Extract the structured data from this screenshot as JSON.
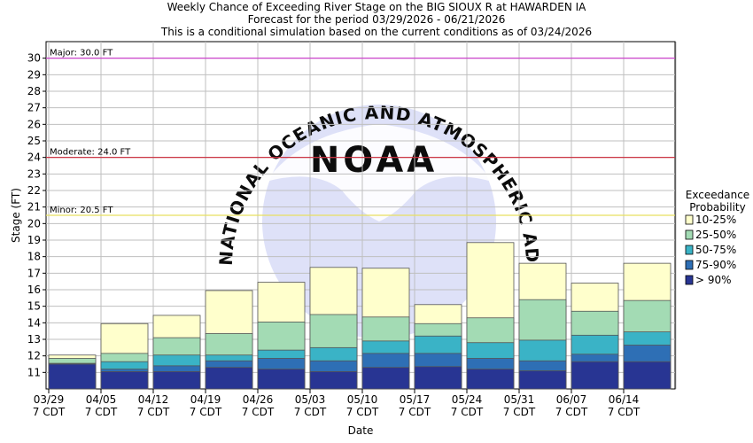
{
  "chart_data": {
    "type": "bar",
    "title": [
      "Weekly Chance of Exceeding River Stage on the BIG SIOUX R at HAWARDEN IA",
      "Forecast for the period 03/29/2026 - 06/21/2026",
      "This is a conditional simulation based on the current conditions as of 03/24/2026"
    ],
    "xlabel": "Date",
    "ylabel": "Stage (FT)",
    "ylim": [
      10,
      31
    ],
    "yticks": [
      11,
      12,
      13,
      14,
      15,
      16,
      17,
      18,
      19,
      20,
      21,
      22,
      23,
      24,
      25,
      26,
      27,
      28,
      29,
      30
    ],
    "grid": true,
    "tick_suffix": "7 CDT",
    "categories": [
      "03/29",
      "04/05",
      "04/12",
      "04/19",
      "04/26",
      "05/03",
      "05/10",
      "05/17",
      "05/24",
      "05/31",
      "06/07",
      "06/14"
    ],
    "series": [
      {
        "name": "> 90%",
        "color": "#283593",
        "values": [
          11.5,
          11.05,
          11.05,
          11.3,
          11.2,
          11.05,
          11.3,
          11.35,
          11.2,
          11.1,
          11.65,
          11.65
        ]
      },
      {
        "name": "75-90%",
        "color": "#2e6fb5",
        "values": [
          11.5,
          11.2,
          11.4,
          11.7,
          11.85,
          11.7,
          12.15,
          12.15,
          11.85,
          11.7,
          12.1,
          12.65
        ]
      },
      {
        "name": "50-75%",
        "color": "#3ab3c6",
        "values": [
          11.55,
          11.65,
          12.05,
          12.05,
          12.35,
          12.5,
          12.9,
          13.2,
          12.8,
          12.95,
          13.25,
          13.45
        ]
      },
      {
        "name": "25-50%",
        "color": "#a3dbb4",
        "values": [
          11.85,
          12.15,
          13.1,
          13.35,
          14.05,
          14.5,
          14.35,
          13.95,
          14.3,
          15.4,
          14.7,
          15.35
        ]
      },
      {
        "name": "10-25%",
        "color": "#ffffcc",
        "values": [
          12.05,
          13.95,
          14.45,
          15.95,
          16.45,
          17.35,
          17.3,
          15.1,
          18.85,
          17.6,
          16.4,
          17.6
        ]
      }
    ],
    "thresholds": [
      {
        "label": "Major: 30.0 FT",
        "value": 30.0,
        "color": "#cc33cc"
      },
      {
        "label": "Moderate: 24.0 FT",
        "value": 24.0,
        "color": "#cc2233"
      },
      {
        "label": "Minor: 20.5 FT",
        "value": 20.5,
        "color": "#e8e060"
      }
    ],
    "legend": {
      "title_line1": "Exceedance",
      "title_line2": "Probability",
      "placement": "right",
      "order": [
        "10-25%",
        "25-50%",
        "50-75%",
        "75-90%",
        "> 90%"
      ]
    },
    "watermark_text": "NATIONAL OCEANIC AND ATMOSPHERIC ADMINISTRATION",
    "watermark_logo": "NOAA"
  }
}
